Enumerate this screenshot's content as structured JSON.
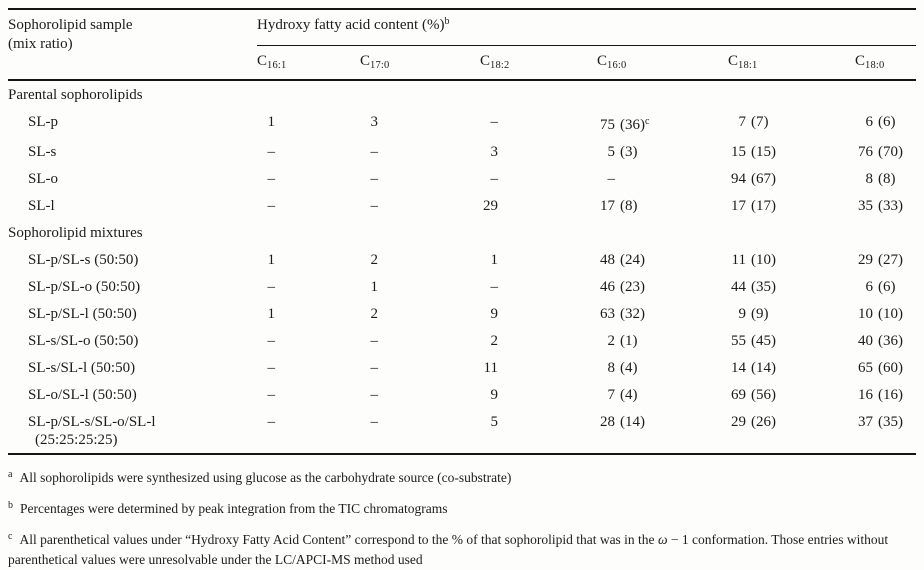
{
  "table": {
    "sample_header_line1": "Sophorolipid sample",
    "sample_header_line2": "(mix ratio)",
    "group_header": "Hydroxy fatty acid content (%)",
    "group_header_sup": "b",
    "columns": [
      {
        "base": "C",
        "sub": "16:1"
      },
      {
        "base": "C",
        "sub": "17:0"
      },
      {
        "base": "C",
        "sub": "18:2"
      },
      {
        "base": "C",
        "sub": "16:0"
      },
      {
        "base": "C",
        "sub": "18:1"
      },
      {
        "base": "C",
        "sub": "18:0"
      }
    ],
    "sections": [
      {
        "label": "Parental sophorolipids",
        "rows": [
          {
            "name": "SL-p",
            "cells": [
              {
                "v": "1"
              },
              {
                "v": "3"
              },
              {
                "v": "–"
              },
              {
                "v": "75",
                "p": "(36)",
                "sup": "c"
              },
              {
                "v": "7",
                "p": "(7)"
              },
              {
                "v": "6",
                "p": "(6)"
              }
            ]
          },
          {
            "name": "SL-s",
            "cells": [
              {
                "v": "–"
              },
              {
                "v": "–"
              },
              {
                "v": "3"
              },
              {
                "v": "5",
                "p": "(3)"
              },
              {
                "v": "15",
                "p": "(15)"
              },
              {
                "v": "76",
                "p": "(70)"
              }
            ]
          },
          {
            "name": "SL-o",
            "cells": [
              {
                "v": "–"
              },
              {
                "v": "–"
              },
              {
                "v": "–"
              },
              {
                "v": "–"
              },
              {
                "v": "94",
                "p": "(67)"
              },
              {
                "v": "8",
                "p": "(8)"
              }
            ]
          },
          {
            "name": "SL-l",
            "cells": [
              {
                "v": "–"
              },
              {
                "v": "–"
              },
              {
                "v": "29"
              },
              {
                "v": "17",
                "p": "(8)"
              },
              {
                "v": "17",
                "p": "(17)"
              },
              {
                "v": "35",
                "p": "(33)"
              }
            ]
          }
        ]
      },
      {
        "label": "Sophorolipid mixtures",
        "rows": [
          {
            "name": "SL-p/SL-s (50:50)",
            "cells": [
              {
                "v": "1"
              },
              {
                "v": "2"
              },
              {
                "v": "1"
              },
              {
                "v": "48",
                "p": "(24)"
              },
              {
                "v": "11",
                "p": "(10)"
              },
              {
                "v": "29",
                "p": "(27)"
              }
            ]
          },
          {
            "name": "SL-p/SL-o (50:50)",
            "cells": [
              {
                "v": "–"
              },
              {
                "v": "1"
              },
              {
                "v": "–"
              },
              {
                "v": "46",
                "p": "(23)"
              },
              {
                "v": "44",
                "p": "(35)"
              },
              {
                "v": "6",
                "p": "(6)"
              }
            ]
          },
          {
            "name": "SL-p/SL-l (50:50)",
            "cells": [
              {
                "v": "1"
              },
              {
                "v": "2"
              },
              {
                "v": "9"
              },
              {
                "v": "63",
                "p": "(32)"
              },
              {
                "v": "9",
                "p": "(9)"
              },
              {
                "v": "10",
                "p": "(10)"
              }
            ]
          },
          {
            "name": "SL-s/SL-o (50:50)",
            "cells": [
              {
                "v": "–"
              },
              {
                "v": "–"
              },
              {
                "v": "2"
              },
              {
                "v": "2",
                "p": "(1)"
              },
              {
                "v": "55",
                "p": "(45)"
              },
              {
                "v": "40",
                "p": "(36)"
              }
            ]
          },
          {
            "name": "SL-s/SL-l (50:50)",
            "cells": [
              {
                "v": "–"
              },
              {
                "v": "–"
              },
              {
                "v": "11"
              },
              {
                "v": "8",
                "p": "(4)"
              },
              {
                "v": "14",
                "p": "(14)"
              },
              {
                "v": "65",
                "p": "(60)"
              }
            ]
          },
          {
            "name": "SL-o/SL-l (50:50)",
            "cells": [
              {
                "v": "–"
              },
              {
                "v": "–"
              },
              {
                "v": "9"
              },
              {
                "v": "7",
                "p": "(4)"
              },
              {
                "v": "69",
                "p": "(56)"
              },
              {
                "v": "16",
                "p": "(16)"
              }
            ]
          },
          {
            "name": "SL-p/SL-s/SL-o/SL-l",
            "name2": "(25:25:25:25)",
            "cells": [
              {
                "v": "–"
              },
              {
                "v": "–"
              },
              {
                "v": "5"
              },
              {
                "v": "28",
                "p": "(14)"
              },
              {
                "v": "29",
                "p": "(26)"
              },
              {
                "v": "37",
                "p": "(35)"
              }
            ]
          }
        ]
      }
    ],
    "footnotes": [
      {
        "sup": "a",
        "parts": [
          {
            "text": "All sophorolipids were synthesized using glucose as the carbohydrate source (co-substrate)"
          }
        ]
      },
      {
        "sup": "b",
        "parts": [
          {
            "text": "Percentages were determined by peak integration from the TIC chromatograms"
          }
        ]
      },
      {
        "sup": "c",
        "parts": [
          {
            "text": "All parenthetical values under “Hydroxy Fatty Acid Content” correspond to the % of that sophorolipid that was in the "
          },
          {
            "text": "ω",
            "italic": true
          },
          {
            "text": " − 1 conformation. Those entries without parenthetical values were unresolvable under the LC/APCI-MS method used"
          }
        ]
      }
    ]
  }
}
